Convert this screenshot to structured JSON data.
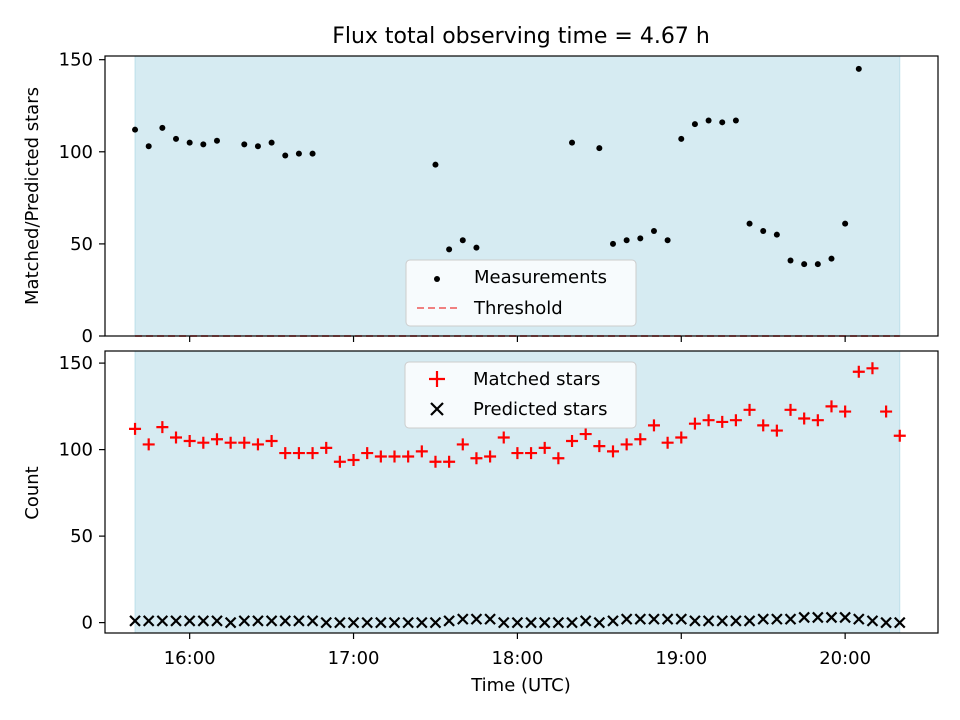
{
  "chart_data": [
    {
      "type": "scatter",
      "title": "Flux total observing time = 4.67 h",
      "xlabel": "",
      "ylabel": "Matched/Predicted stars",
      "ylim": [
        0,
        152
      ],
      "yticks": [
        0,
        50,
        100,
        150
      ],
      "xlim": [
        "15:29",
        "20:34"
      ],
      "shaded_span": [
        "15:40",
        "20:20"
      ],
      "grid": false,
      "legend_location": "bottom-center",
      "colors": {
        "shade": "#add8e6",
        "measurements": "#000000",
        "threshold": "#f08080"
      },
      "legend": [
        {
          "label": "Measurements",
          "marker": "dot"
        },
        {
          "label": "Threshold",
          "marker": "dashed-line"
        }
      ],
      "threshold": 0,
      "series": [
        {
          "name": "Measurements",
          "x": [
            "15:40",
            "15:45",
            "15:50",
            "15:55",
            "16:00",
            "16:05",
            "16:10",
            "16:20",
            "16:25",
            "16:30",
            "16:35",
            "16:40",
            "16:45",
            "17:30",
            "17:35",
            "17:40",
            "17:45",
            "18:20",
            "18:30",
            "18:35",
            "18:40",
            "18:45",
            "18:50",
            "18:55",
            "19:00",
            "19:05",
            "19:10",
            "19:15",
            "19:20",
            "19:25",
            "19:30",
            "19:35",
            "19:40",
            "19:45",
            "19:50",
            "19:55",
            "20:00",
            "20:05"
          ],
          "y": [
            112,
            103,
            113,
            107,
            105,
            104,
            106,
            104,
            103,
            105,
            98,
            99,
            99,
            93,
            47,
            52,
            48,
            105,
            102,
            50,
            52,
            53,
            57,
            52,
            107,
            115,
            117,
            116,
            117,
            61,
            57,
            55,
            41,
            39,
            39,
            42,
            61,
            145
          ]
        }
      ]
    },
    {
      "type": "scatter",
      "title": "",
      "xlabel": "Time (UTC)",
      "ylabel": "Count",
      "ylim": [
        -6,
        157
      ],
      "yticks": [
        0,
        50,
        100,
        150
      ],
      "xlim": [
        "15:29",
        "20:34"
      ],
      "xticks": [
        "16:00",
        "17:00",
        "18:00",
        "19:00",
        "20:00"
      ],
      "shaded_span": [
        "15:40",
        "20:20"
      ],
      "grid": false,
      "legend_location": "top-center",
      "colors": {
        "shade": "#add8e6",
        "matched": "#ff0000",
        "predicted": "#000000"
      },
      "legend": [
        {
          "label": "Matched stars",
          "marker": "plus"
        },
        {
          "label": "Predicted stars",
          "marker": "x"
        }
      ],
      "series": [
        {
          "name": "Matched stars",
          "x": [
            "15:40",
            "15:45",
            "15:50",
            "15:55",
            "16:00",
            "16:05",
            "16:10",
            "16:15",
            "16:20",
            "16:25",
            "16:30",
            "16:35",
            "16:40",
            "16:45",
            "16:50",
            "16:55",
            "17:00",
            "17:05",
            "17:10",
            "17:15",
            "17:20",
            "17:25",
            "17:30",
            "17:35",
            "17:40",
            "17:45",
            "17:50",
            "17:55",
            "18:00",
            "18:05",
            "18:10",
            "18:15",
            "18:20",
            "18:25",
            "18:30",
            "18:35",
            "18:40",
            "18:45",
            "18:50",
            "18:55",
            "19:00",
            "19:05",
            "19:10",
            "19:15",
            "19:20",
            "19:25",
            "19:30",
            "19:35",
            "19:40",
            "19:45",
            "19:50",
            "19:55",
            "20:00",
            "20:05",
            "20:10",
            "20:15",
            "20:20"
          ],
          "y": [
            112,
            103,
            113,
            107,
            105,
            104,
            106,
            104,
            104,
            103,
            105,
            98,
            98,
            98,
            101,
            93,
            94,
            98,
            96,
            96,
            96,
            99,
            93,
            93,
            103,
            95,
            96,
            107,
            98,
            98,
            101,
            95,
            105,
            109,
            102,
            99,
            103,
            106,
            114,
            104,
            107,
            115,
            117,
            116,
            117,
            123,
            114,
            111,
            123,
            118,
            117,
            125,
            122,
            145,
            147,
            122,
            108
          ]
        },
        {
          "name": "Predicted stars",
          "x": [
            "15:40",
            "15:45",
            "15:50",
            "15:55",
            "16:00",
            "16:05",
            "16:10",
            "16:15",
            "16:20",
            "16:25",
            "16:30",
            "16:35",
            "16:40",
            "16:45",
            "16:50",
            "16:55",
            "17:00",
            "17:05",
            "17:10",
            "17:15",
            "17:20",
            "17:25",
            "17:30",
            "17:35",
            "17:40",
            "17:45",
            "17:50",
            "17:55",
            "18:00",
            "18:05",
            "18:10",
            "18:15",
            "18:20",
            "18:25",
            "18:30",
            "18:35",
            "18:40",
            "18:45",
            "18:50",
            "18:55",
            "19:00",
            "19:05",
            "19:10",
            "19:15",
            "19:20",
            "19:25",
            "19:30",
            "19:35",
            "19:40",
            "19:45",
            "19:50",
            "19:55",
            "20:00",
            "20:05",
            "20:10",
            "20:15",
            "20:20"
          ],
          "y": [
            1,
            1,
            1,
            1,
            1,
            1,
            1,
            0,
            1,
            1,
            1,
            1,
            1,
            1,
            0,
            0,
            0,
            0,
            0,
            0,
            0,
            0,
            0,
            1,
            2,
            2,
            2,
            0,
            0,
            0,
            0,
            0,
            0,
            1,
            0,
            1,
            2,
            2,
            2,
            2,
            2,
            1,
            1,
            1,
            1,
            1,
            2,
            2,
            2,
            3,
            3,
            3,
            3,
            2,
            1,
            0,
            0
          ]
        }
      ]
    }
  ]
}
